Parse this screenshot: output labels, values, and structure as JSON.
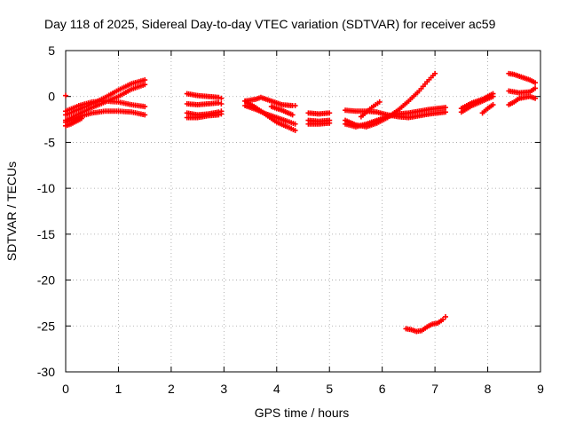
{
  "chart_data": {
    "type": "scatter",
    "title": "Day 118 of 2025, Sidereal Day-to-day VTEC variation (SDTVAR) for receiver ac59",
    "xlabel": "GPS time / hours",
    "ylabel": "SDTVAR / TECUs",
    "xlim": [
      0,
      9
    ],
    "ylim": [
      -30,
      5
    ],
    "xticks": [
      0,
      1,
      2,
      3,
      4,
      5,
      6,
      7,
      8,
      9
    ],
    "yticks": [
      -30,
      -25,
      -20,
      -15,
      -10,
      -5,
      0,
      5
    ],
    "grid": true,
    "legend": "none",
    "marker": "+",
    "color": "#ff0000",
    "series": [
      {
        "x": [
          0.0,
          0.25,
          0.5,
          0.75,
          1.0,
          1.25,
          1.5
        ],
        "y": [
          -2.0,
          -1.4,
          -0.8,
          -0.1,
          0.7,
          1.4,
          1.8
        ]
      },
      {
        "x": [
          0.0,
          0.25,
          0.5,
          0.75,
          1.0,
          1.25,
          1.5
        ],
        "y": [
          -2.6,
          -1.9,
          -1.2,
          -0.6,
          0.0,
          0.8,
          1.3
        ]
      },
      {
        "x": [
          0.0,
          0.25,
          0.5,
          0.75,
          1.0,
          1.25,
          1.5
        ],
        "y": [
          -1.6,
          -1.0,
          -0.6,
          -0.5,
          -0.6,
          -0.9,
          -1.1
        ]
      },
      {
        "x": [
          0.0,
          0.25,
          0.5,
          0.75,
          1.0,
          1.25,
          1.5
        ],
        "y": [
          -2.8,
          -2.2,
          -1.8,
          -1.6,
          -1.6,
          -1.7,
          -2.0
        ]
      },
      {
        "x": [
          0.0,
          0.1,
          0.2,
          0.3
        ],
        "y": [
          -3.2,
          -3.0,
          -2.7,
          -2.4
        ]
      },
      {
        "x": [
          0.0
        ],
        "y": [
          0.1
        ]
      },
      {
        "x": [
          2.3,
          2.5,
          2.7,
          2.9,
          2.95
        ],
        "y": [
          0.3,
          0.1,
          0.0,
          -0.1,
          -0.2
        ]
      },
      {
        "x": [
          2.3,
          2.5,
          2.7,
          2.9,
          2.95
        ],
        "y": [
          -0.8,
          -0.9,
          -0.8,
          -0.7,
          -0.8
        ]
      },
      {
        "x": [
          2.3,
          2.5,
          2.7,
          2.9,
          2.95
        ],
        "y": [
          -1.8,
          -2.0,
          -1.9,
          -1.7,
          -1.6
        ]
      },
      {
        "x": [
          2.3,
          2.5,
          2.7,
          2.9,
          2.95
        ],
        "y": [
          -2.3,
          -2.3,
          -2.1,
          -2.0,
          -1.9
        ]
      },
      {
        "x": [
          3.4,
          3.6,
          3.8,
          4.0,
          4.2,
          4.35
        ],
        "y": [
          -0.5,
          -1.2,
          -2.0,
          -2.8,
          -3.3,
          -3.7
        ]
      },
      {
        "x": [
          3.4,
          3.6,
          3.8,
          4.0,
          4.2,
          4.35
        ],
        "y": [
          -1.0,
          -1.4,
          -1.9,
          -2.3,
          -2.7,
          -3.0
        ]
      },
      {
        "x": [
          3.4,
          3.6,
          3.7,
          3.9,
          4.1,
          4.3,
          4.35
        ],
        "y": [
          -0.5,
          -0.3,
          -0.1,
          -0.5,
          -0.9,
          -1.0,
          -1.0
        ]
      },
      {
        "x": [
          3.9,
          4.1,
          4.3
        ],
        "y": [
          -1.1,
          -1.5,
          -2.0
        ]
      },
      {
        "x": [
          4.6,
          4.8,
          5.0
        ],
        "y": [
          -1.8,
          -1.9,
          -1.8
        ]
      },
      {
        "x": [
          4.6,
          4.8,
          5.0
        ],
        "y": [
          -2.6,
          -2.7,
          -2.6
        ]
      },
      {
        "x": [
          4.6,
          4.8,
          5.0
        ],
        "y": [
          -3.0,
          -3.0,
          -2.9
        ]
      },
      {
        "x": [
          5.3,
          5.5,
          5.7,
          5.9,
          6.1,
          6.3,
          6.5,
          6.7,
          6.85,
          7.0
        ],
        "y": [
          -2.6,
          -3.1,
          -3.3,
          -2.9,
          -2.3,
          -1.5,
          -0.5,
          0.6,
          1.6,
          2.5
        ]
      },
      {
        "x": [
          5.3,
          5.5,
          5.7,
          5.9,
          6.1,
          6.3,
          6.5,
          6.7,
          6.9,
          7.2
        ],
        "y": [
          -3.0,
          -3.3,
          -3.0,
          -2.6,
          -2.2,
          -1.9,
          -1.8,
          -1.6,
          -1.4,
          -1.2
        ]
      },
      {
        "x": [
          5.3,
          5.5,
          5.7,
          5.9,
          6.1,
          6.3,
          6.5,
          6.7,
          6.9,
          7.2
        ],
        "y": [
          -1.5,
          -1.6,
          -1.6,
          -1.7,
          -2.0,
          -2.2,
          -2.3,
          -2.1,
          -1.9,
          -1.7
        ]
      },
      {
        "x": [
          5.6,
          5.8,
          5.95
        ],
        "y": [
          -2.2,
          -1.2,
          -0.6
        ]
      },
      {
        "x": [
          7.5,
          7.7,
          7.9,
          8.1
        ],
        "y": [
          -1.3,
          -0.7,
          -0.3,
          0.3
        ]
      },
      {
        "x": [
          7.5,
          7.7,
          7.9,
          8.1
        ],
        "y": [
          -1.7,
          -1.0,
          -0.5,
          0.0
        ]
      },
      {
        "x": [
          7.9,
          8.0,
          8.1
        ],
        "y": [
          -1.8,
          -1.3,
          -0.9
        ]
      },
      {
        "x": [
          8.4,
          8.5,
          8.6,
          8.8,
          8.9
        ],
        "y": [
          2.5,
          2.4,
          2.2,
          1.8,
          1.5
        ]
      },
      {
        "x": [
          8.4,
          8.5,
          8.6,
          8.8,
          8.9
        ],
        "y": [
          0.6,
          0.5,
          0.4,
          0.5,
          0.9
        ]
      },
      {
        "x": [
          8.4,
          8.5,
          8.6,
          8.8,
          8.9
        ],
        "y": [
          -0.9,
          -0.6,
          -0.2,
          0.0,
          -0.2
        ]
      },
      {
        "x": [
          6.45,
          6.55,
          6.65,
          6.75,
          6.85,
          6.95,
          7.05,
          7.15,
          7.2
        ],
        "y": [
          -25.3,
          -25.4,
          -25.6,
          -25.5,
          -25.1,
          -24.8,
          -24.7,
          -24.3,
          -24.0
        ]
      }
    ]
  }
}
